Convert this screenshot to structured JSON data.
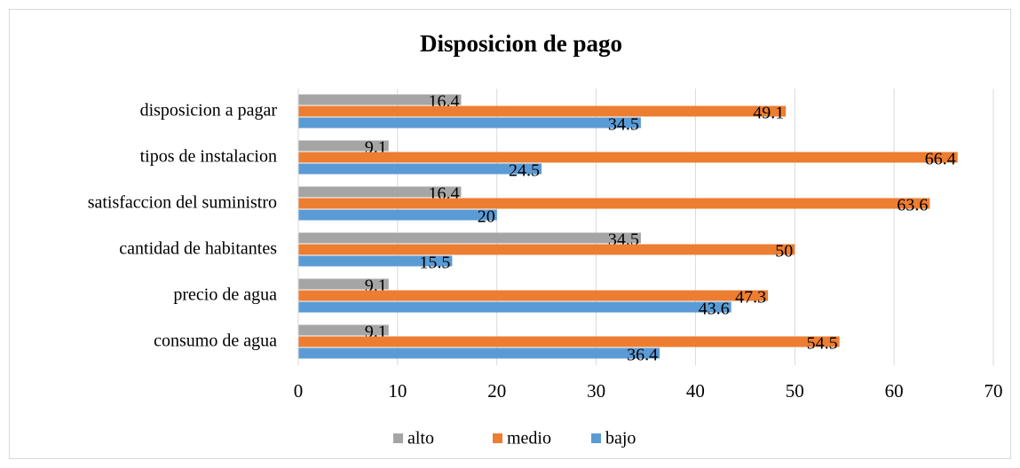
{
  "chart_data": {
    "type": "bar",
    "orientation": "horizontal",
    "title": "Disposicion de pago",
    "categories": [
      "disposicion a pagar",
      "tipos de instalacion",
      "satisfaccion del suministro",
      "cantidad de habitantes",
      "precio de agua",
      "consumo de agua"
    ],
    "series": [
      {
        "name": "alto",
        "color": "#a5a5a5",
        "values": [
          16.4,
          9.1,
          16.4,
          34.5,
          9.1,
          9.1
        ]
      },
      {
        "name": "medio",
        "color": "#ed7d31",
        "values": [
          49.1,
          66.4,
          63.6,
          50,
          47.3,
          54.5
        ]
      },
      {
        "name": "bajo",
        "color": "#5b9bd5",
        "values": [
          34.5,
          24.5,
          20,
          15.5,
          43.6,
          36.4
        ]
      }
    ],
    "xlim": [
      0,
      70
    ],
    "xticks": [
      0,
      10,
      20,
      30,
      40,
      50,
      60,
      70
    ],
    "grid": true,
    "legend": "bottom"
  }
}
